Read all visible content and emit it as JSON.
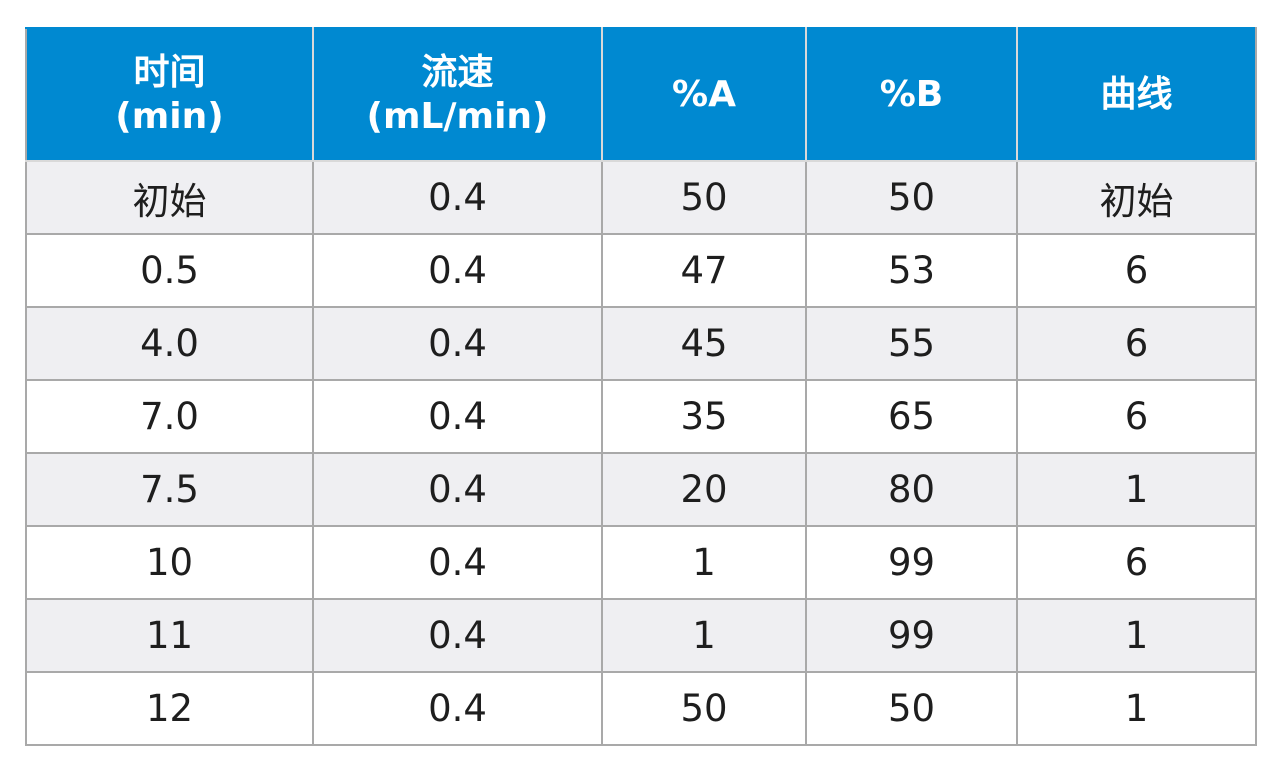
{
  "table": {
    "headers": [
      {
        "line1": "时间",
        "line2": "(min)"
      },
      {
        "line1": "流速",
        "line2": "(mL/min)"
      },
      {
        "line1": "%A",
        "line2": ""
      },
      {
        "line1": "%B",
        "line2": ""
      },
      {
        "line1": "曲线",
        "line2": ""
      }
    ],
    "rows": [
      [
        "初始",
        "0.4",
        "50",
        "50",
        "初始"
      ],
      [
        "0.5",
        "0.4",
        "47",
        "53",
        "6"
      ],
      [
        "4.0",
        "0.4",
        "45",
        "55",
        "6"
      ],
      [
        "7.0",
        "0.4",
        "35",
        "65",
        "6"
      ],
      [
        "7.5",
        "0.4",
        "20",
        "80",
        "1"
      ],
      [
        "10",
        "0.4",
        "1",
        "99",
        "6"
      ],
      [
        "11",
        "0.4",
        "1",
        "99",
        "1"
      ],
      [
        "12",
        "0.4",
        "50",
        "50",
        "1"
      ]
    ]
  },
  "colors": {
    "header_bg": "#0089d1",
    "header_text": "#ffffff",
    "stripe": "#efeff2",
    "border": "#a9a9a9"
  }
}
